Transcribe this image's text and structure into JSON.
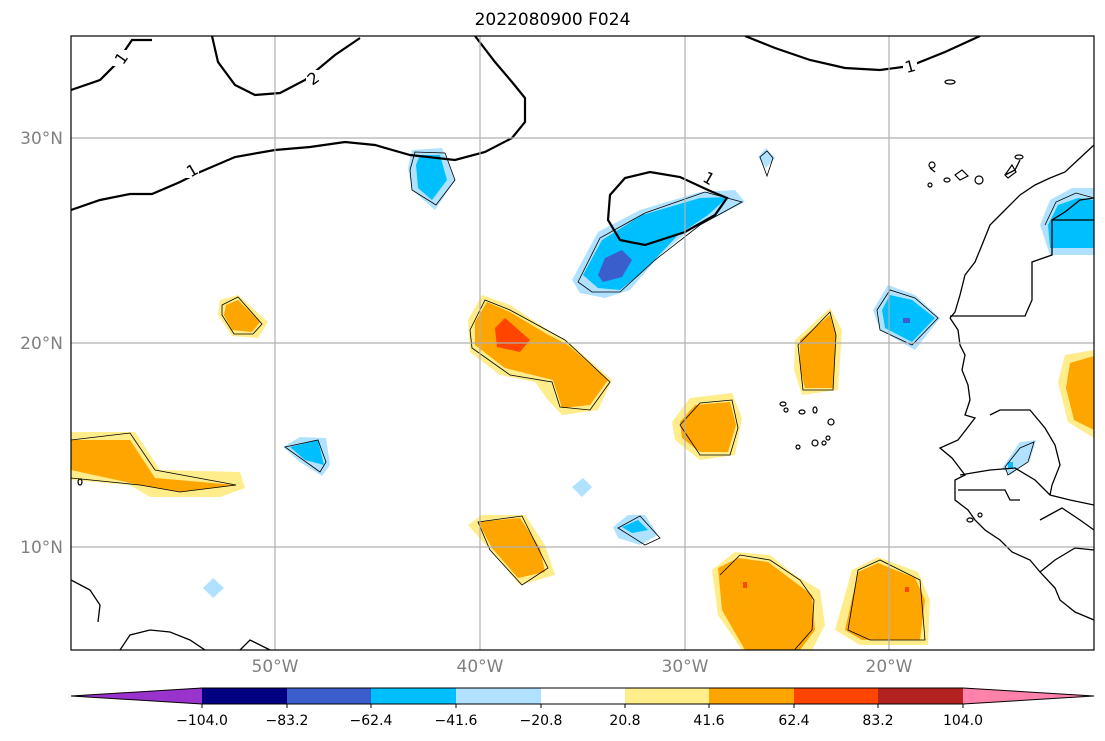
{
  "title": "2022080900 F024",
  "map": {
    "lon_range": [
      -60,
      -10
    ],
    "lat_range": [
      5,
      35
    ],
    "lat_ticks": [
      {
        "value": 10,
        "label": "10°N"
      },
      {
        "value": 20,
        "label": "20°N"
      },
      {
        "value": 30,
        "label": "30°N"
      }
    ],
    "lon_ticks": [
      {
        "value": -50,
        "label": "50°W"
      },
      {
        "value": -40,
        "label": "40°W"
      },
      {
        "value": -30,
        "label": "30°W"
      },
      {
        "value": -20,
        "label": "20°W"
      }
    ],
    "grid": true
  },
  "contour_labels": [
    "1",
    "2",
    "1",
    "1",
    "1"
  ],
  "colorbar": {
    "ticks": [
      "−104.0",
      "−83.2",
      "−62.4",
      "−41.6",
      "−20.8",
      "20.8",
      "41.6",
      "62.4",
      "83.2",
      "104.0"
    ],
    "colors": [
      "#9a32cd",
      "#000080",
      "#3a5fcd",
      "#00bfff",
      "#b0e2ff",
      "#ffffff",
      "#ffec8b",
      "#ffa500",
      "#ff4500",
      "#b22222",
      "#ff82ab"
    ],
    "extend": "both"
  }
}
